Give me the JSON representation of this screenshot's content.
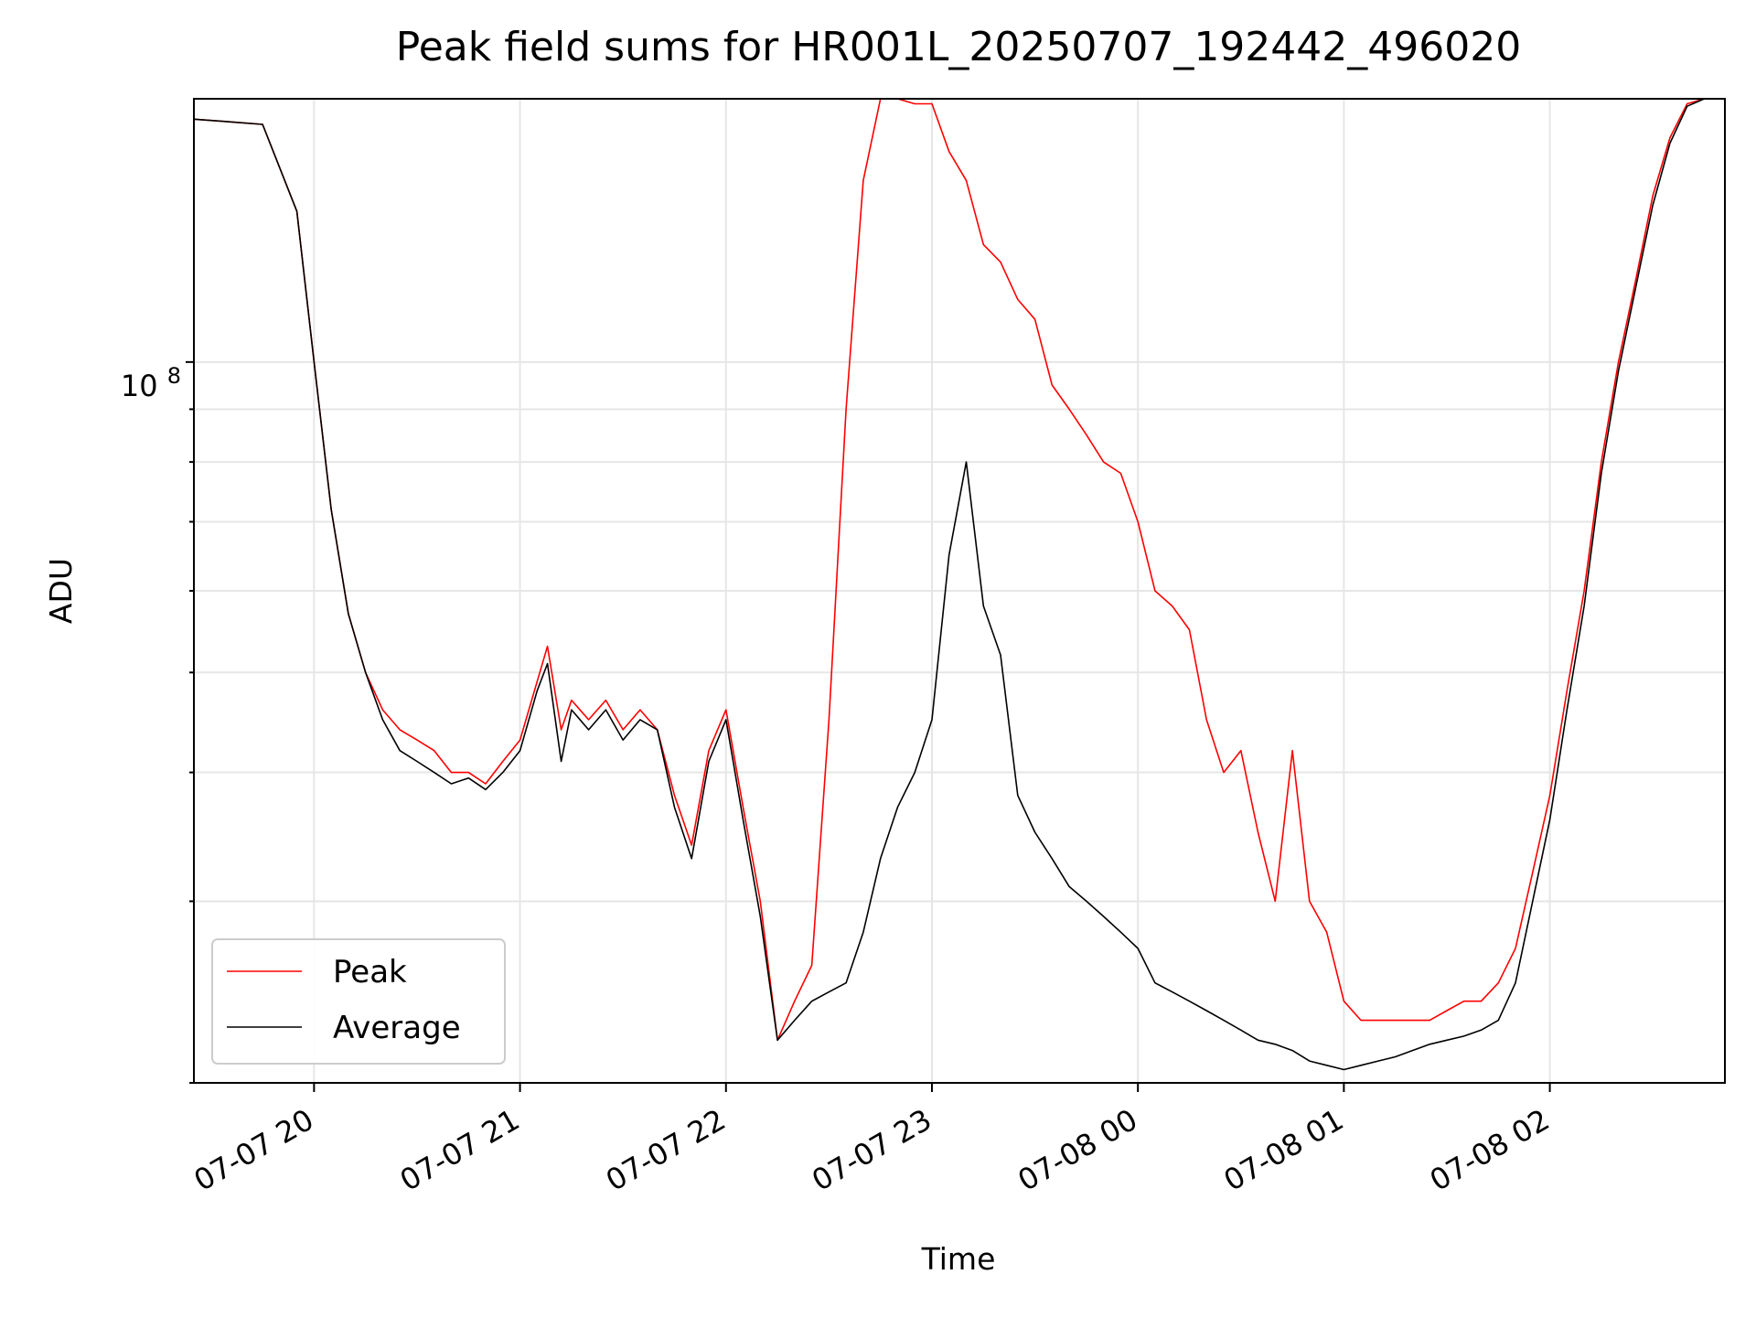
{
  "chart_data": {
    "type": "line",
    "title": "Peak field sums for HR001L_20250707_192442_496020",
    "xlabel": "Time",
    "ylabel": "ADU",
    "yscale": "log",
    "ylim": [
      20000000,
      180000000
    ],
    "xlim": [
      "2025-07-07 19:25",
      "2025-07-08 02:51"
    ],
    "grid": true,
    "legend_position": "lower-left",
    "x_tick_labels": [
      "07-07 20",
      "07-07 21",
      "07-07 22",
      "07-07 23",
      "07-08 00",
      "07-08 01",
      "07-08 02"
    ],
    "x_ticks": [
      "2025-07-07 20:00",
      "2025-07-07 21:00",
      "2025-07-07 22:00",
      "2025-07-07 23:00",
      "2025-07-08 00:00",
      "2025-07-08 01:00",
      "2025-07-08 02:00"
    ],
    "y_tick_labels": [
      {
        "base": "10",
        "exp": "8"
      }
    ],
    "y_ticks": [
      100000000
    ],
    "series": [
      {
        "name": "Peak",
        "color": "#ff0000",
        "x": [
          "2025-07-07 19:25",
          "2025-07-07 19:35",
          "2025-07-07 19:45",
          "2025-07-07 19:55",
          "2025-07-07 20:00",
          "2025-07-07 20:05",
          "2025-07-07 20:10",
          "2025-07-07 20:15",
          "2025-07-07 20:20",
          "2025-07-07 20:25",
          "2025-07-07 20:30",
          "2025-07-07 20:35",
          "2025-07-07 20:40",
          "2025-07-07 20:45",
          "2025-07-07 20:50",
          "2025-07-07 20:55",
          "2025-07-07 21:00",
          "2025-07-07 21:05",
          "2025-07-07 21:08",
          "2025-07-07 21:12",
          "2025-07-07 21:15",
          "2025-07-07 21:20",
          "2025-07-07 21:25",
          "2025-07-07 21:30",
          "2025-07-07 21:35",
          "2025-07-07 21:40",
          "2025-07-07 21:45",
          "2025-07-07 21:50",
          "2025-07-07 21:55",
          "2025-07-07 22:00",
          "2025-07-07 22:05",
          "2025-07-07 22:10",
          "2025-07-07 22:15",
          "2025-07-07 22:20",
          "2025-07-07 22:25",
          "2025-07-07 22:30",
          "2025-07-07 22:35",
          "2025-07-07 22:40",
          "2025-07-07 22:45",
          "2025-07-07 22:50",
          "2025-07-07 22:55",
          "2025-07-07 23:00",
          "2025-07-07 23:05",
          "2025-07-07 23:10",
          "2025-07-07 23:15",
          "2025-07-07 23:20",
          "2025-07-07 23:25",
          "2025-07-07 23:30",
          "2025-07-07 23:35",
          "2025-07-07 23:40",
          "2025-07-07 23:45",
          "2025-07-07 23:50",
          "2025-07-07 23:55",
          "2025-07-08 00:00",
          "2025-07-08 00:05",
          "2025-07-08 00:10",
          "2025-07-08 00:15",
          "2025-07-08 00:20",
          "2025-07-08 00:25",
          "2025-07-08 00:30",
          "2025-07-08 00:35",
          "2025-07-08 00:40",
          "2025-07-08 00:45",
          "2025-07-08 00:50",
          "2025-07-08 00:55",
          "2025-07-08 01:00",
          "2025-07-08 01:05",
          "2025-07-08 01:10",
          "2025-07-08 01:15",
          "2025-07-08 01:20",
          "2025-07-08 01:25",
          "2025-07-08 01:30",
          "2025-07-08 01:35",
          "2025-07-08 01:40",
          "2025-07-08 01:45",
          "2025-07-08 01:50",
          "2025-07-08 01:55",
          "2025-07-08 02:00",
          "2025-07-08 02:05",
          "2025-07-08 02:10",
          "2025-07-08 02:15",
          "2025-07-08 02:20",
          "2025-07-08 02:25",
          "2025-07-08 02:30",
          "2025-07-08 02:35",
          "2025-07-08 02:40",
          "2025-07-08 02:45",
          "2025-07-08 02:51"
        ],
        "values": [
          172000000,
          171000000,
          170000000,
          140000000,
          100000000,
          72000000,
          57000000,
          50000000,
          46000000,
          44000000,
          43000000,
          42000000,
          40000000,
          40000000,
          39000000,
          41000000,
          43000000,
          49000000,
          53000000,
          44000000,
          47000000,
          45000000,
          47000000,
          44000000,
          46000000,
          44000000,
          38000000,
          34000000,
          42000000,
          46000000,
          37000000,
          30000000,
          22000000,
          24000000,
          26000000,
          45000000,
          90000000,
          150000000,
          180000000,
          180000000,
          178000000,
          178000000,
          160000000,
          150000000,
          130000000,
          125000000,
          115000000,
          110000000,
          95000000,
          90000000,
          85000000,
          80000000,
          78000000,
          70000000,
          60000000,
          58000000,
          55000000,
          45000000,
          40000000,
          42000000,
          35000000,
          30000000,
          42000000,
          30000000,
          28000000,
          24000000,
          23000000,
          23000000,
          23000000,
          23000000,
          23000000,
          23500000,
          24000000,
          24000000,
          25000000,
          27000000,
          32000000,
          38000000,
          48000000,
          60000000,
          80000000,
          100000000,
          120000000,
          145000000,
          165000000,
          178000000,
          180000000,
          180000000
        ]
      },
      {
        "name": "Average",
        "color": "#000000",
        "x": [
          "2025-07-07 19:25",
          "2025-07-07 19:35",
          "2025-07-07 19:45",
          "2025-07-07 19:55",
          "2025-07-07 20:00",
          "2025-07-07 20:05",
          "2025-07-07 20:10",
          "2025-07-07 20:15",
          "2025-07-07 20:20",
          "2025-07-07 20:25",
          "2025-07-07 20:30",
          "2025-07-07 20:35",
          "2025-07-07 20:40",
          "2025-07-07 20:45",
          "2025-07-07 20:50",
          "2025-07-07 20:55",
          "2025-07-07 21:00",
          "2025-07-07 21:05",
          "2025-07-07 21:08",
          "2025-07-07 21:12",
          "2025-07-07 21:15",
          "2025-07-07 21:20",
          "2025-07-07 21:25",
          "2025-07-07 21:30",
          "2025-07-07 21:35",
          "2025-07-07 21:40",
          "2025-07-07 21:45",
          "2025-07-07 21:50",
          "2025-07-07 21:55",
          "2025-07-07 22:00",
          "2025-07-07 22:05",
          "2025-07-07 22:10",
          "2025-07-07 22:15",
          "2025-07-07 22:20",
          "2025-07-07 22:25",
          "2025-07-07 22:30",
          "2025-07-07 22:35",
          "2025-07-07 22:40",
          "2025-07-07 22:45",
          "2025-07-07 22:50",
          "2025-07-07 22:55",
          "2025-07-07 23:00",
          "2025-07-07 23:05",
          "2025-07-07 23:10",
          "2025-07-07 23:15",
          "2025-07-07 23:20",
          "2025-07-07 23:25",
          "2025-07-07 23:30",
          "2025-07-07 23:35",
          "2025-07-07 23:40",
          "2025-07-07 23:45",
          "2025-07-07 23:50",
          "2025-07-07 23:55",
          "2025-07-08 00:00",
          "2025-07-08 00:05",
          "2025-07-08 00:10",
          "2025-07-08 00:15",
          "2025-07-08 00:20",
          "2025-07-08 00:25",
          "2025-07-08 00:30",
          "2025-07-08 00:35",
          "2025-07-08 00:40",
          "2025-07-08 00:45",
          "2025-07-08 00:50",
          "2025-07-08 00:55",
          "2025-07-08 01:00",
          "2025-07-08 01:05",
          "2025-07-08 01:10",
          "2025-07-08 01:15",
          "2025-07-08 01:20",
          "2025-07-08 01:25",
          "2025-07-08 01:30",
          "2025-07-08 01:35",
          "2025-07-08 01:40",
          "2025-07-08 01:45",
          "2025-07-08 01:50",
          "2025-07-08 01:55",
          "2025-07-08 02:00",
          "2025-07-08 02:05",
          "2025-07-08 02:10",
          "2025-07-08 02:15",
          "2025-07-08 02:20",
          "2025-07-08 02:25",
          "2025-07-08 02:30",
          "2025-07-08 02:35",
          "2025-07-08 02:40",
          "2025-07-08 02:45",
          "2025-07-08 02:51"
        ],
        "values": [
          172000000,
          171000000,
          170000000,
          140000000,
          100000000,
          72000000,
          57000000,
          50000000,
          45000000,
          42000000,
          41000000,
          40000000,
          39000000,
          39500000,
          38500000,
          40000000,
          42000000,
          48000000,
          51000000,
          41000000,
          46000000,
          44000000,
          46000000,
          43000000,
          45000000,
          44000000,
          37000000,
          33000000,
          41000000,
          45000000,
          36000000,
          29000000,
          22000000,
          23000000,
          24000000,
          24500000,
          25000000,
          28000000,
          33000000,
          37000000,
          40000000,
          45000000,
          65000000,
          80000000,
          58000000,
          52000000,
          38000000,
          35000000,
          33000000,
          31000000,
          30000000,
          29000000,
          28000000,
          27000000,
          25000000,
          24500000,
          24000000,
          23500000,
          23000000,
          22500000,
          22000000,
          21800000,
          21500000,
          21000000,
          20800000,
          20600000,
          20800000,
          21000000,
          21200000,
          21500000,
          21800000,
          22000000,
          22200000,
          22500000,
          23000000,
          25000000,
          30000000,
          36000000,
          46000000,
          58000000,
          78000000,
          98000000,
          118000000,
          142000000,
          163000000,
          177000000,
          180000000,
          180000000
        ]
      }
    ]
  }
}
